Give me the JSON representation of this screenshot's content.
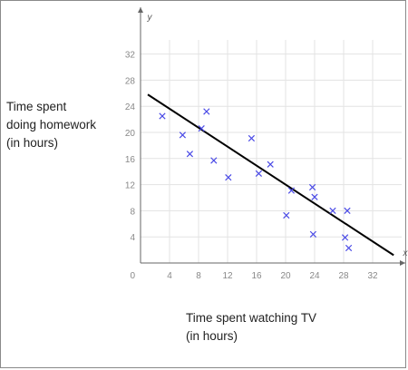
{
  "chart_data": {
    "type": "scatter",
    "xlabel_lines": [
      "Time spent watching TV",
      "(in hours)"
    ],
    "ylabel_lines": [
      "Time spent",
      "doing homework",
      "(in hours)"
    ],
    "x_axis_letter": "x",
    "y_axis_letter": "y",
    "origin_label": "0",
    "xlim": [
      0,
      36
    ],
    "ylim": [
      0,
      35
    ],
    "x_ticks": [
      4,
      8,
      12,
      16,
      20,
      24,
      28,
      32
    ],
    "y_ticks": [
      4,
      8,
      12,
      16,
      20,
      24,
      28,
      32
    ],
    "grid": true,
    "marker": "x",
    "marker_color": "#4a4ae6",
    "points": [
      {
        "x": 3,
        "y": 22.5
      },
      {
        "x": 5.8,
        "y": 19.6
      },
      {
        "x": 6.8,
        "y": 16.7
      },
      {
        "x": 8.4,
        "y": 20.6
      },
      {
        "x": 9.1,
        "y": 23.2
      },
      {
        "x": 10.1,
        "y": 15.7
      },
      {
        "x": 12.1,
        "y": 13.1
      },
      {
        "x": 15.3,
        "y": 19.1
      },
      {
        "x": 16.3,
        "y": 13.7
      },
      {
        "x": 17.9,
        "y": 15.1
      },
      {
        "x": 20.1,
        "y": 7.3
      },
      {
        "x": 20.8,
        "y": 11.1
      },
      {
        "x": 23.7,
        "y": 11.6
      },
      {
        "x": 24.0,
        "y": 10.1
      },
      {
        "x": 23.8,
        "y": 4.4
      },
      {
        "x": 26.5,
        "y": 8.0
      },
      {
        "x": 28.2,
        "y": 3.9
      },
      {
        "x": 28.5,
        "y": 8.0
      },
      {
        "x": 28.7,
        "y": 2.3
      }
    ],
    "trend_line": {
      "x1": 1,
      "y1": 25.8,
      "x2": 34.9,
      "y2": 1.2,
      "color": "#000000"
    }
  }
}
